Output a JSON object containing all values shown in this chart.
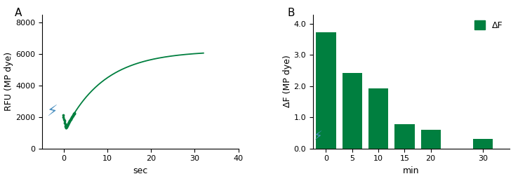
{
  "panel_a": {
    "label": "A",
    "xlabel": "sec",
    "ylabel": "RFU (MP dye)",
    "xlim": [
      -5,
      40
    ],
    "ylim": [
      0,
      8500
    ],
    "yticks": [
      0,
      2000,
      4000,
      6000,
      8000
    ],
    "xticks": [
      0,
      10,
      20,
      30,
      40
    ],
    "line_color": "#007f3f",
    "lightning_x": -2.8,
    "lightning_y": 2300
  },
  "panel_b": {
    "label": "B",
    "xlabel": "min",
    "ylabel": "ΔF (MP dye)",
    "xlim": [
      -2.5,
      35
    ],
    "ylim": [
      0,
      4.3
    ],
    "yticks": [
      0.0,
      1.0,
      2.0,
      3.0,
      4.0
    ],
    "ytick_labels": [
      "0.0",
      "1.0",
      "2.0",
      "3.0",
      "4.0"
    ],
    "bar_positions": [
      0,
      5,
      10,
      15,
      20,
      30
    ],
    "bar_values": [
      3.72,
      2.42,
      1.92,
      0.77,
      0.6,
      0.3
    ],
    "bar_color": "#007f3f",
    "bar_width": 3.8,
    "xtick_labels": [
      "0",
      "5",
      "10",
      "15",
      "20",
      "30"
    ],
    "legend_label": "ΔF",
    "lightning_x": -1.5,
    "lightning_y": 0.38
  },
  "background_color": "#ffffff",
  "green_color": "#007f3f",
  "blue_lightning_color": "#4a8fc0"
}
